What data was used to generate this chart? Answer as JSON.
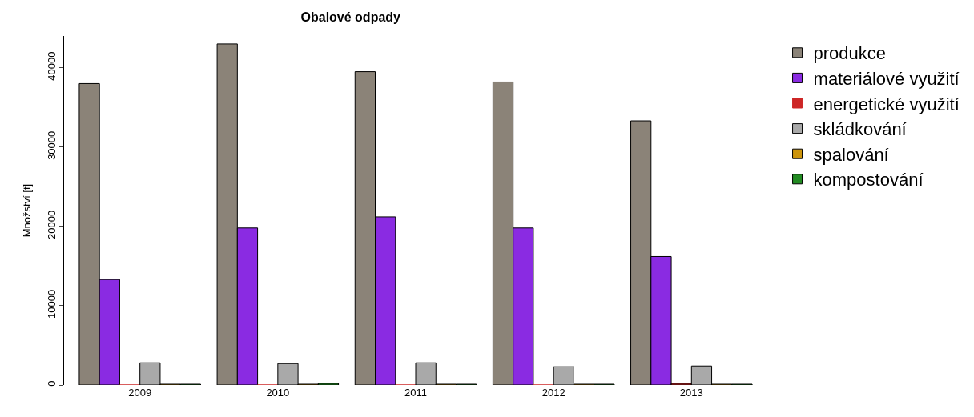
{
  "chart_data": {
    "type": "bar",
    "title": "Obalové odpady",
    "ylabel": "Množství [t]",
    "categories": [
      "2009",
      "2010",
      "2011",
      "2012",
      "2013"
    ],
    "series": [
      {
        "name": "produkce",
        "color": "#8b8378",
        "values": [
          38000,
          43000,
          39500,
          38200,
          33300
        ]
      },
      {
        "name": "materiálové využití",
        "color": "#8a2be2",
        "values": [
          13300,
          19800,
          21200,
          19800,
          16200
        ]
      },
      {
        "name": "energetické využití",
        "color": "#cd2626",
        "values": [
          0,
          0,
          0,
          0,
          200
        ]
      },
      {
        "name": "skládkování",
        "color": "#a9a9a9",
        "values": [
          2800,
          2700,
          2800,
          2300,
          2400
        ]
      },
      {
        "name": "spalování",
        "color": "#cd950c",
        "values": [
          100,
          100,
          100,
          100,
          100
        ]
      },
      {
        "name": "kompostování",
        "color": "#228b22",
        "values": [
          100,
          200,
          100,
          100,
          100
        ]
      }
    ],
    "ylim": [
      0,
      44000
    ],
    "yticks": [
      0,
      10000,
      20000,
      30000,
      40000
    ],
    "legend": "right"
  }
}
